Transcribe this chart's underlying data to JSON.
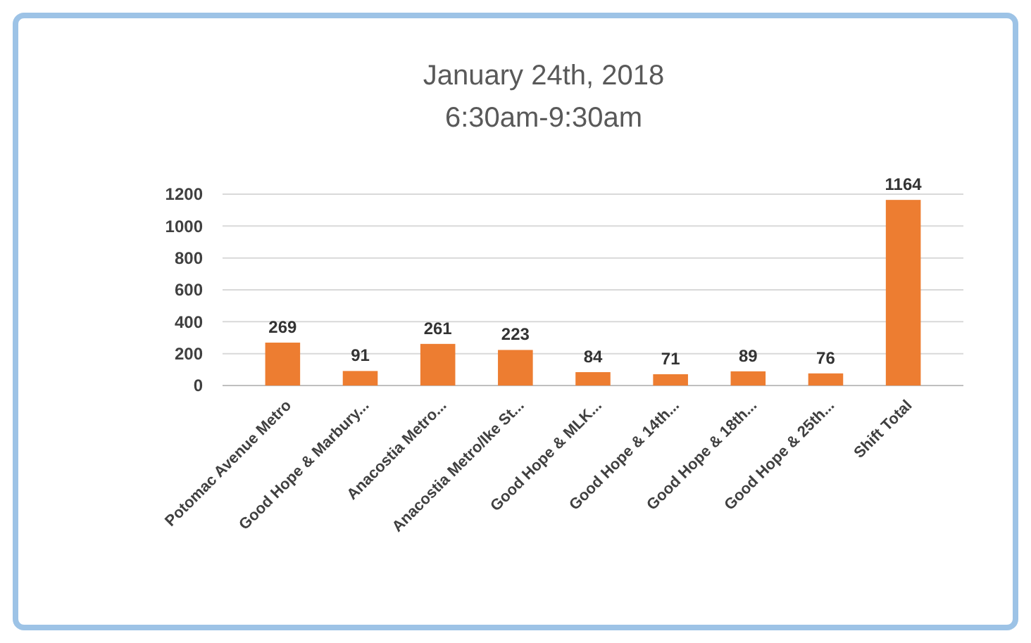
{
  "chart_data": {
    "type": "bar",
    "title": "January 24th, 2018",
    "subtitle": "6:30am-9:30am",
    "categories": [
      "Potomac Avenue Metro",
      "Good Hope & Marbury...",
      "Anacostia Metro...",
      "Anacostia Metro/Ike St...",
      "Good Hope & MLK...",
      "Good Hope & 14th...",
      "Good Hope & 18th...",
      "Good Hope & 25th...",
      "Shift Total"
    ],
    "values": [
      269,
      91,
      261,
      223,
      84,
      71,
      89,
      76,
      1164
    ],
    "color": "#ed7d31",
    "ylim": [
      0,
      1200
    ],
    "yticks": [
      0,
      200,
      400,
      600,
      800,
      1000,
      1200
    ],
    "grid": "y",
    "data_labels": true
  }
}
